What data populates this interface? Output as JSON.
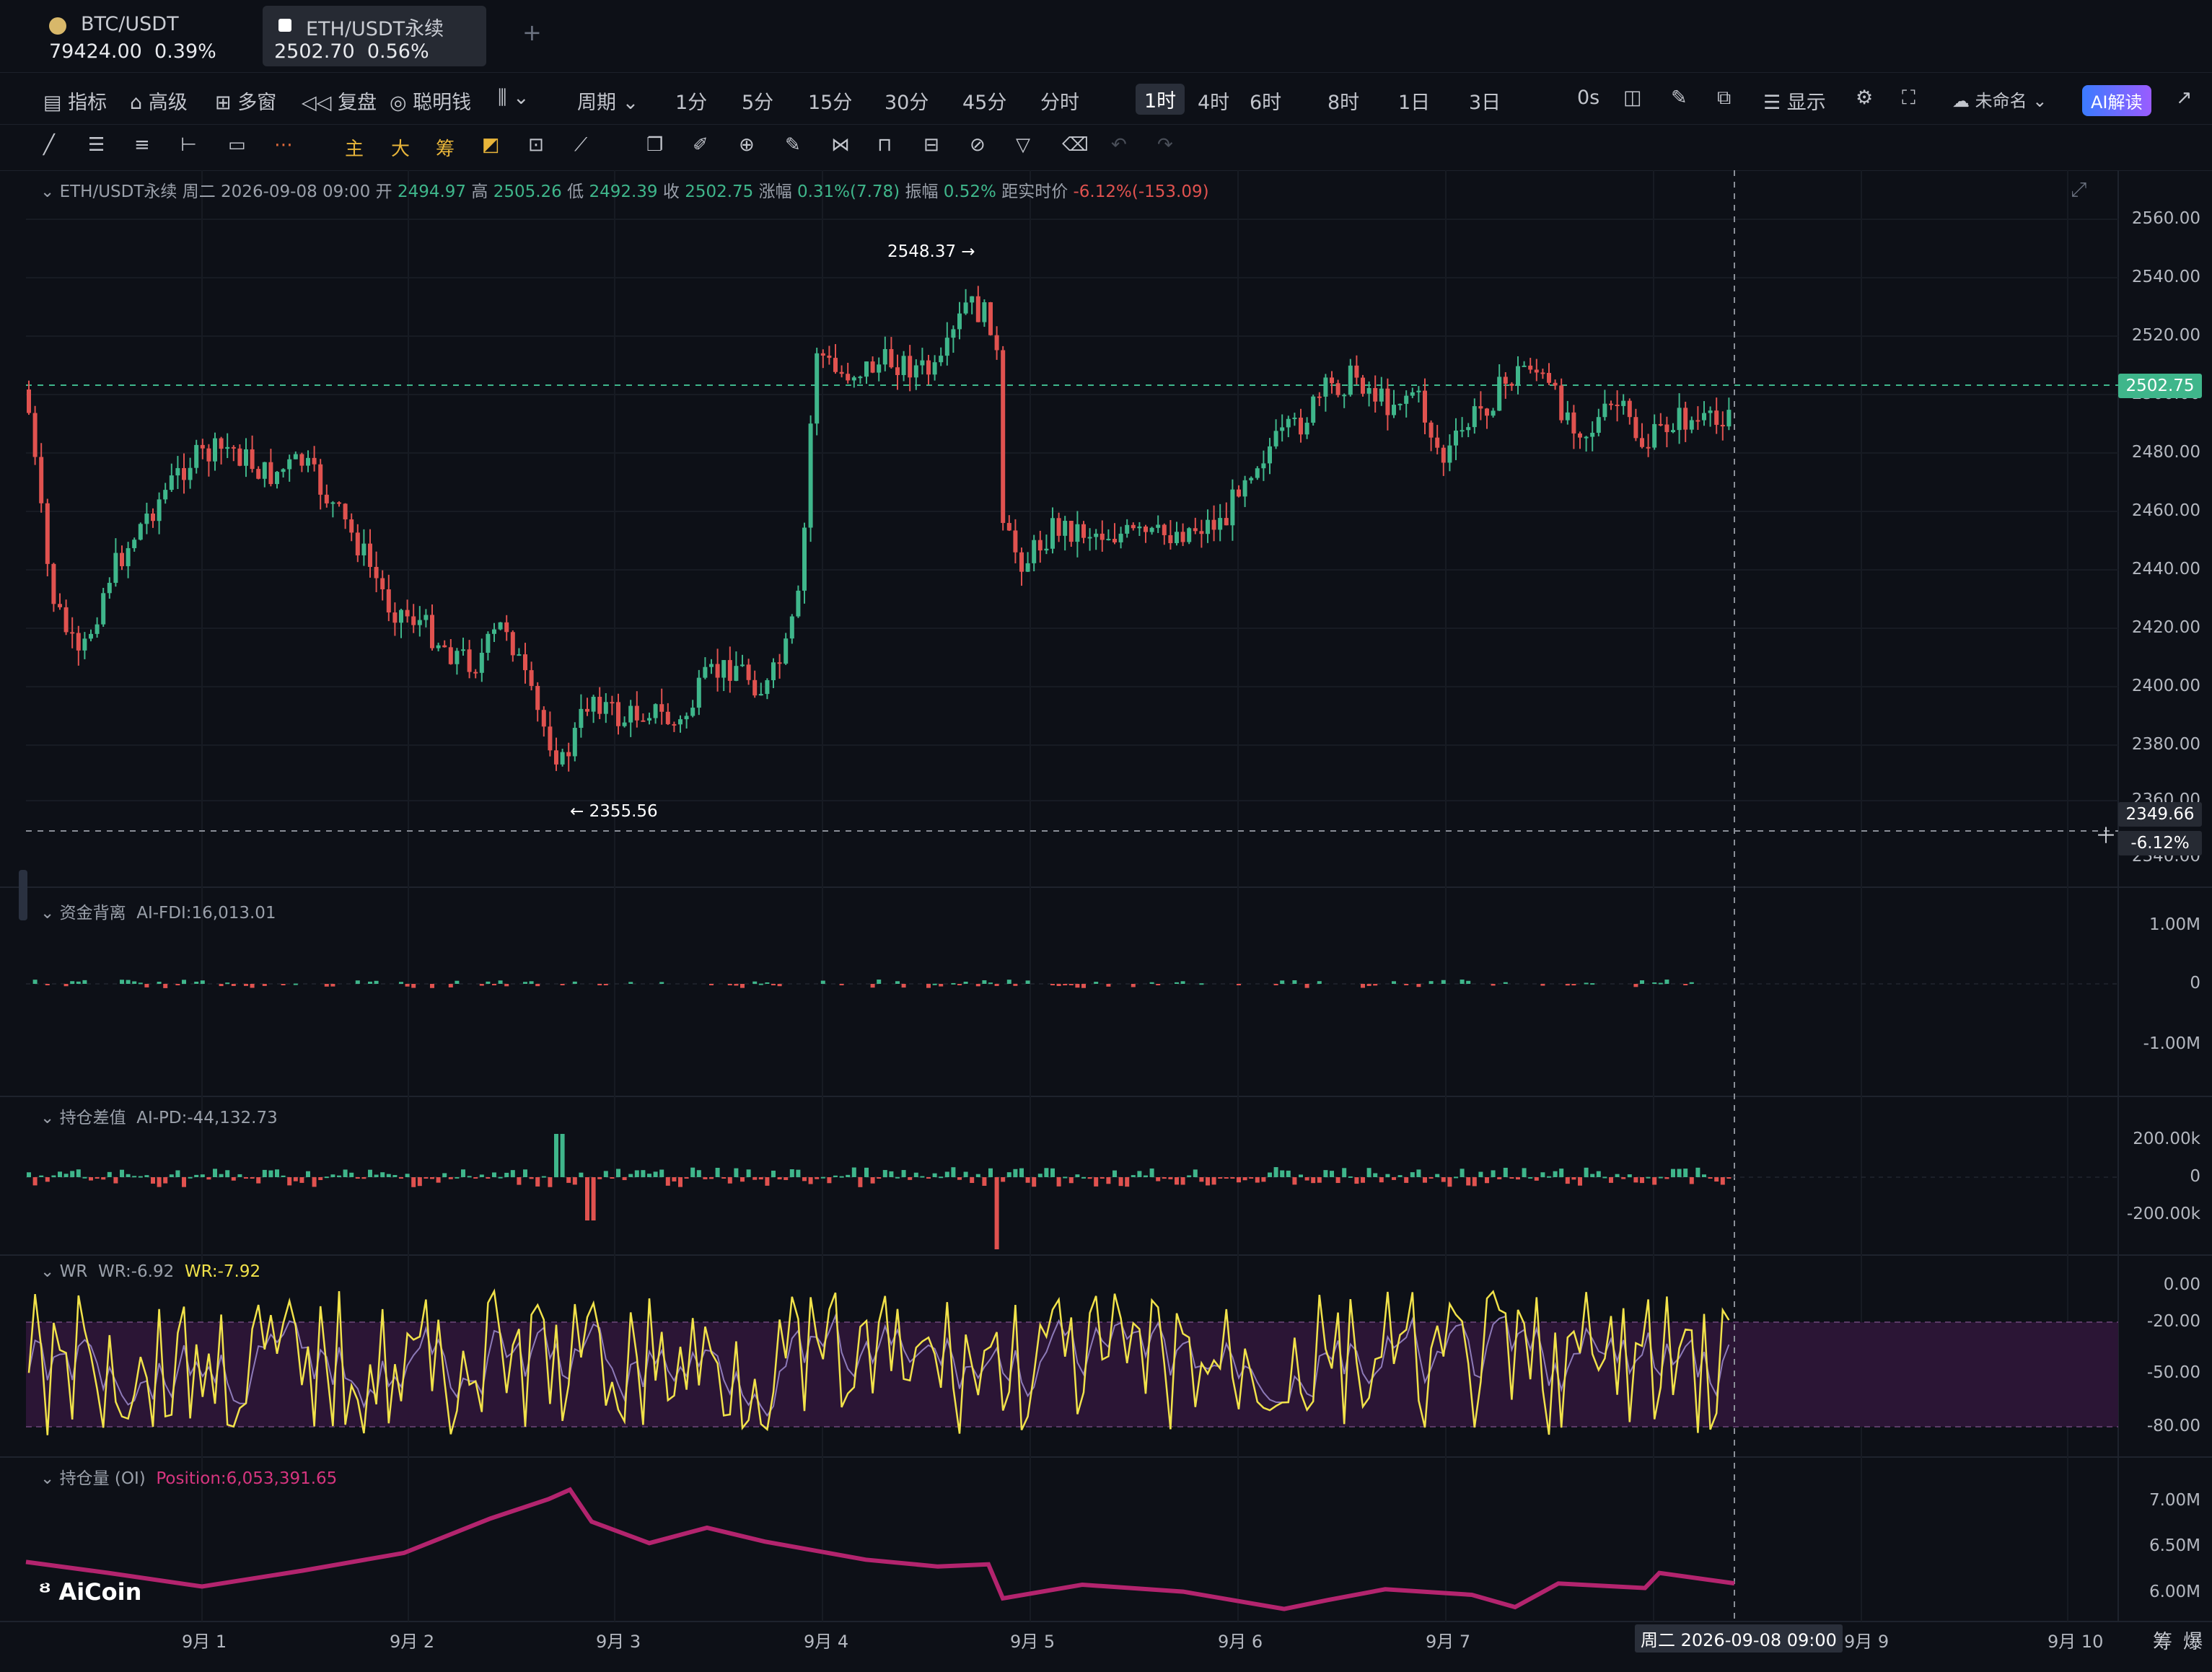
{
  "tabs": [
    {
      "pair": "BTC/USDT",
      "price": "79424.00",
      "change": "0.39%"
    },
    {
      "pair": "ETH/USDT永续",
      "price": "2502.70",
      "change": "0.56%"
    }
  ],
  "add_tab": "+",
  "toolbar": {
    "left": [
      "指标",
      "高级",
      "多窗",
      "复盘",
      "聪明钱"
    ],
    "period_label": "周期",
    "intervals": [
      "1分",
      "5分",
      "15分",
      "30分",
      "45分",
      "分时",
      "1时",
      "4时",
      "6时",
      "8时",
      "1日",
      "3日"
    ],
    "selected_interval": "1时",
    "countdown": "0s",
    "display": "显示",
    "layout_name": "未命名",
    "ai_button": "AI解读"
  },
  "drawbar": {
    "marks": [
      "主",
      "大",
      "筹"
    ]
  },
  "header": {
    "symbol": "ETH/USDT永续",
    "datetime": "周二 2026-09-08 09:00",
    "open_label": "开",
    "open": "2494.97",
    "high_label": "高",
    "high": "2505.26",
    "low_label": "低",
    "low": "2492.39",
    "close_label": "收",
    "close": "2502.75",
    "chg_label": "涨幅",
    "chg": "0.31%(7.78)",
    "amp_label": "振幅",
    "amp": "0.52%",
    "dist_label": "距实时价",
    "dist": "-6.12%(-153.09)"
  },
  "main_axis": [
    "2560.00",
    "2540.00",
    "2520.00",
    "2500.00",
    "2480.00",
    "2460.00",
    "2440.00",
    "2420.00",
    "2400.00",
    "2380.00",
    "2360.00",
    "2340.00"
  ],
  "price_tag": "2502.75",
  "cross_tag": {
    "price": "2349.66",
    "pct": "-6.12%"
  },
  "annotations": {
    "high": "2548.37 →",
    "low": "← 2355.56"
  },
  "fdi": {
    "name": "资金背离",
    "value": "AI-FDI:16,013.01",
    "axis": [
      "1.00M",
      "0",
      "-1.00M"
    ]
  },
  "pd": {
    "name": "持仓差值",
    "value": "AI-PD:-44,132.73",
    "axis": [
      "200.00k",
      "0",
      "-200.00k"
    ]
  },
  "wr": {
    "name": "WR",
    "v1": "WR:-6.92",
    "v2": "WR:-7.92",
    "axis": [
      "0.00",
      "-20.00",
      "-50.00",
      "-80.00"
    ]
  },
  "oi": {
    "name": "持仓量 (OI)",
    "value": "Position:6,053,391.65",
    "axis": [
      "7.00M",
      "6.50M",
      "6.00M"
    ]
  },
  "logo": "AiCoin",
  "x_labels": [
    "9月 1",
    "9月 2",
    "9月 3",
    "9月 4",
    "9月 5",
    "9月 6",
    "9月 7",
    "9月 9",
    "9月 10"
  ],
  "x_cursor": "周二 2026-09-08 09:00",
  "corner": [
    "筹",
    "爆"
  ],
  "colors": {
    "up": "#3fb68b",
    "down": "#e0524f",
    "wr1": "#f1e24a",
    "wr2": "#8d7ab8",
    "oi": "#b3246e",
    "wrband": "#2b1535"
  }
}
